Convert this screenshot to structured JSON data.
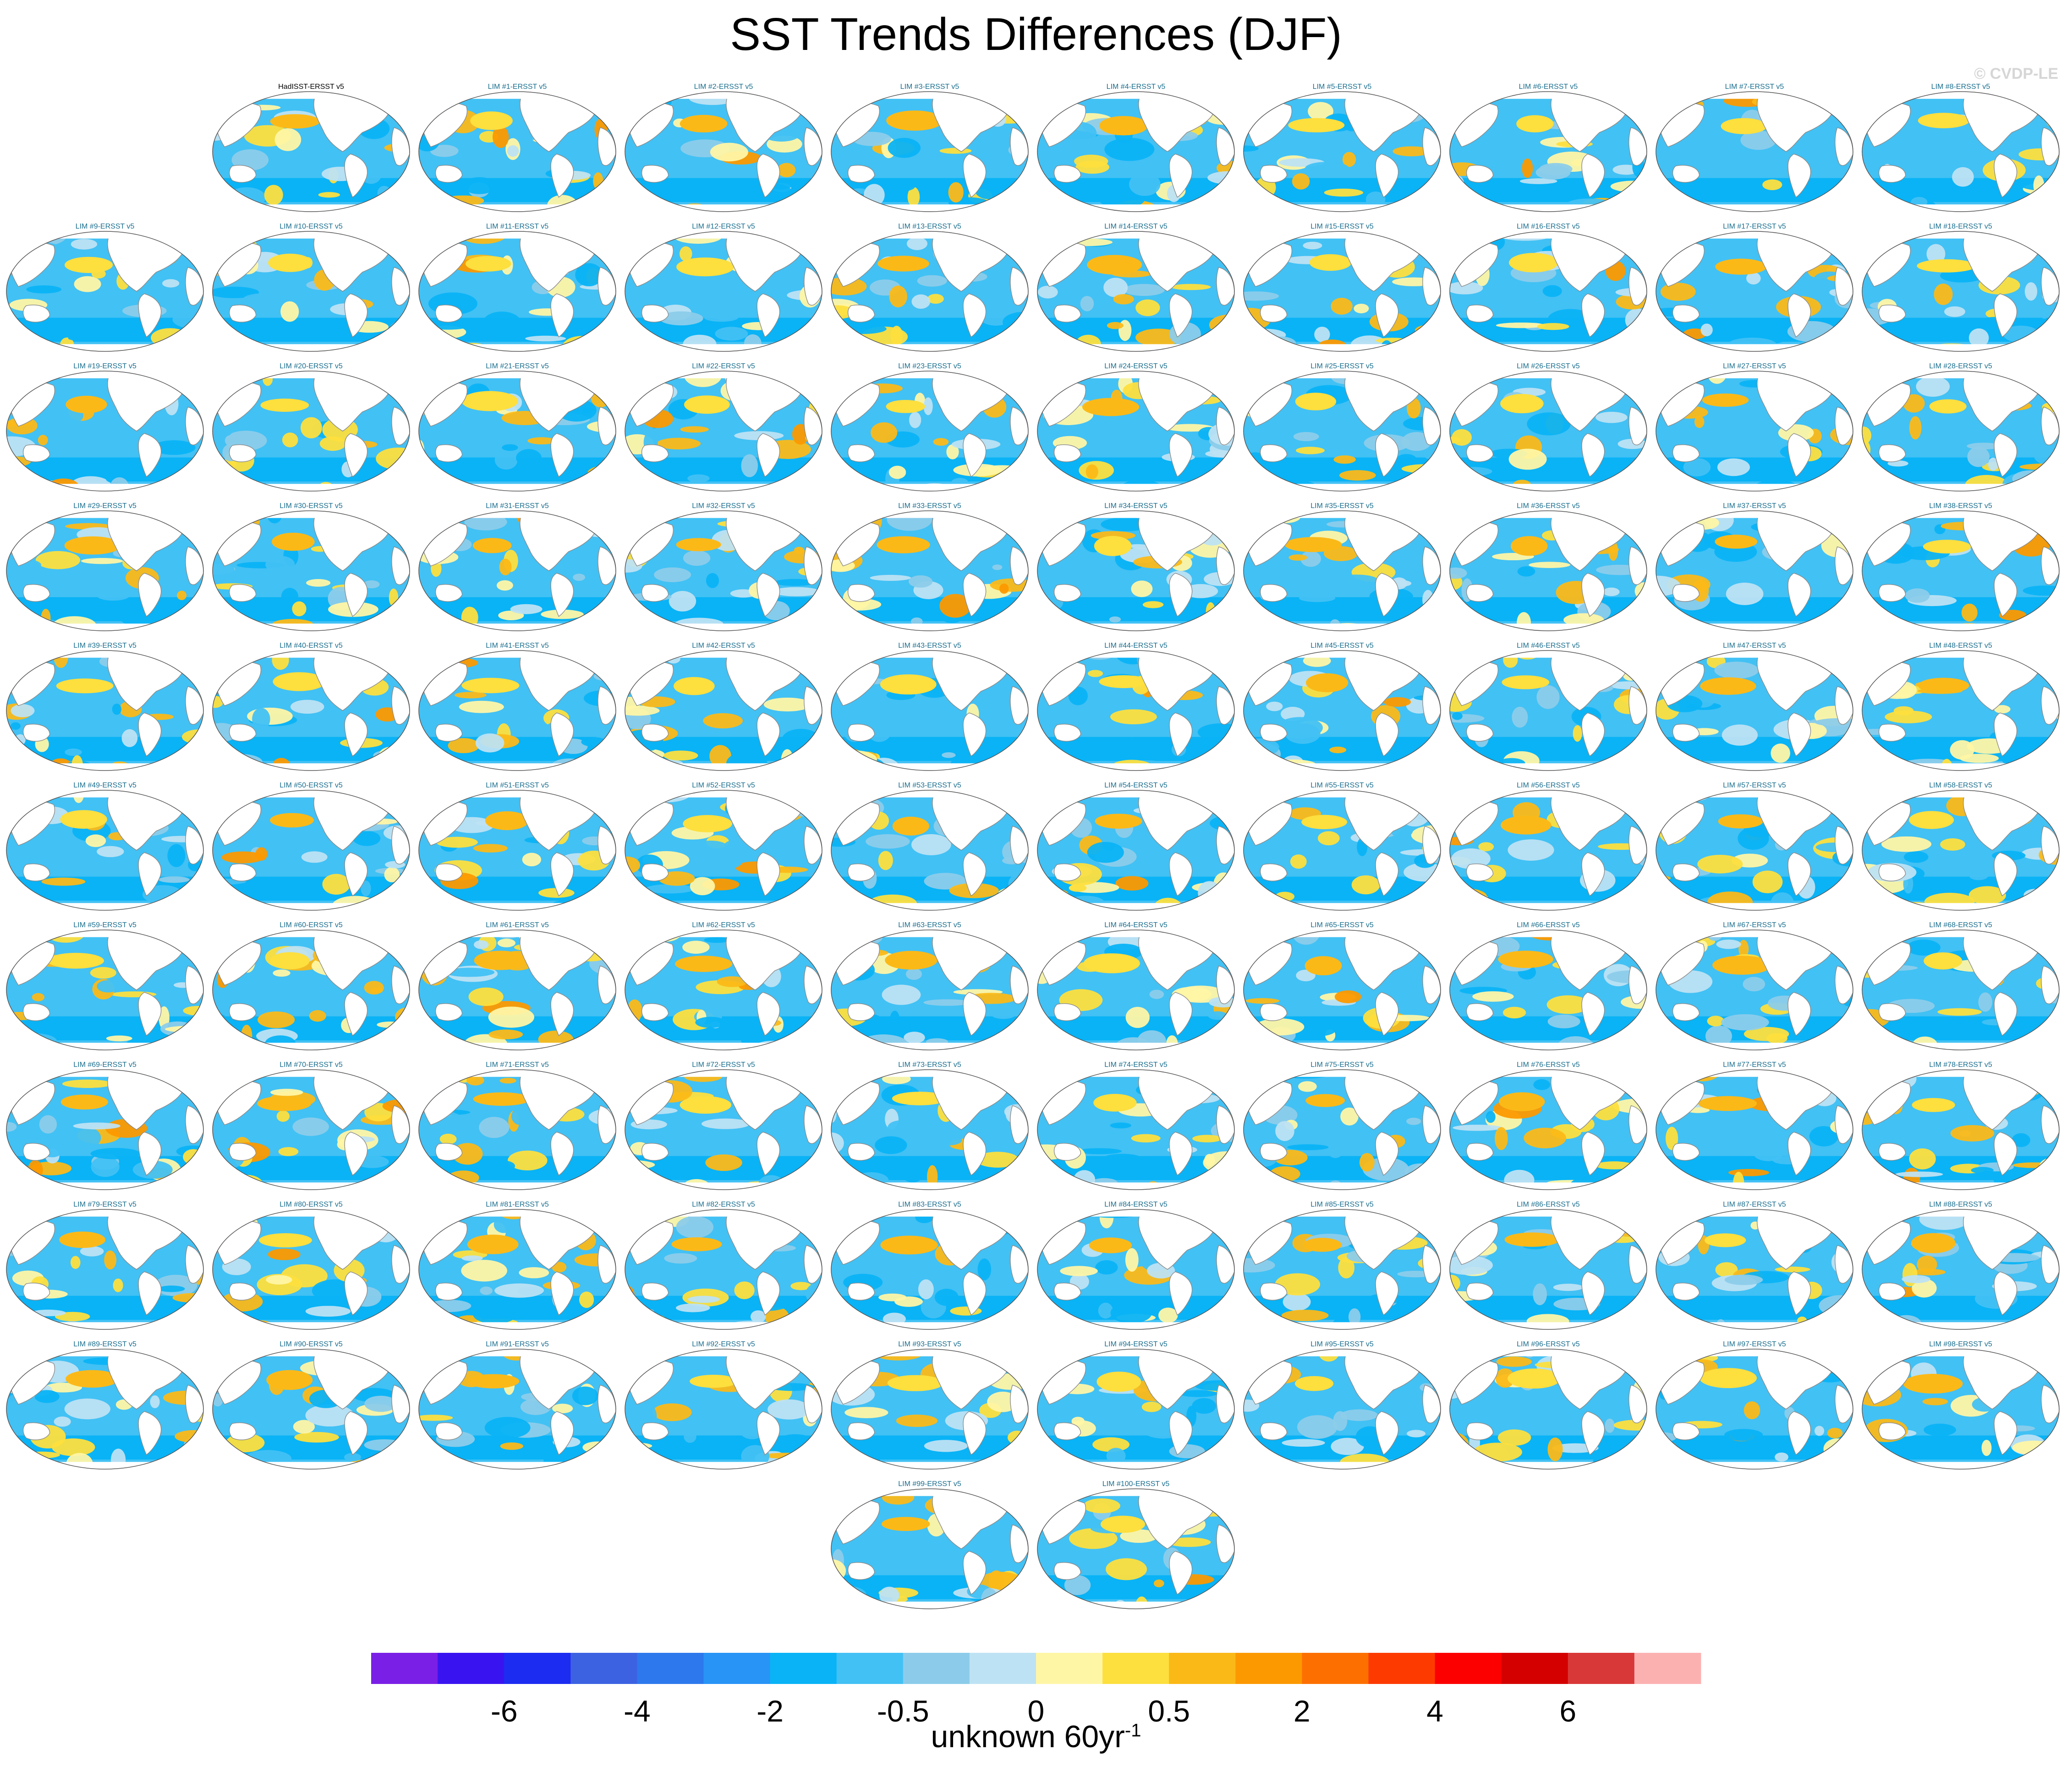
{
  "chart_data": {
    "type": "heatmap",
    "title": "SST Trends Differences (DJF)",
    "watermark": "© CVDP-LE",
    "units_label": "unknown 60yr",
    "units_exponent": "-1",
    "panels": [
      {
        "label": "HadISST-ERSST v5",
        "color": "#000000"
      },
      {
        "label": "LIM #1-ERSST v5",
        "color": "#1a6e8e"
      },
      {
        "label": "LIM #2-ERSST v5",
        "color": "#1a6e8e"
      },
      {
        "label": "LIM #3-ERSST v5",
        "color": "#1a6e8e"
      },
      {
        "label": "LIM #4-ERSST v5",
        "color": "#1a6e8e"
      },
      {
        "label": "LIM #5-ERSST v5",
        "color": "#1a6e8e"
      },
      {
        "label": "LIM #6-ERSST v5",
        "color": "#1a6e8e"
      },
      {
        "label": "LIM #7-ERSST v5",
        "color": "#1a6e8e"
      },
      {
        "label": "LIM #8-ERSST v5",
        "color": "#1a6e8e"
      },
      {
        "label": "LIM #9-ERSST v5",
        "color": "#1a6e8e"
      },
      {
        "label": "LIM #10-ERSST v5",
        "color": "#1a6e8e"
      },
      {
        "label": "LIM #11-ERSST v5",
        "color": "#1a6e8e"
      },
      {
        "label": "LIM #12-ERSST v5",
        "color": "#1a6e8e"
      },
      {
        "label": "LIM #13-ERSST v5",
        "color": "#1a6e8e"
      },
      {
        "label": "LIM #14-ERSST v5",
        "color": "#1a6e8e"
      },
      {
        "label": "LIM #15-ERSST v5",
        "color": "#1a6e8e"
      },
      {
        "label": "LIM #16-ERSST v5",
        "color": "#1a6e8e"
      },
      {
        "label": "LIM #17-ERSST v5",
        "color": "#1a6e8e"
      },
      {
        "label": "LIM #18-ERSST v5",
        "color": "#1a6e8e"
      },
      {
        "label": "LIM #19-ERSST v5",
        "color": "#1a6e8e"
      },
      {
        "label": "LIM #20-ERSST v5",
        "color": "#1a6e8e"
      },
      {
        "label": "LIM #21-ERSST v5",
        "color": "#1a6e8e"
      },
      {
        "label": "LIM #22-ERSST v5",
        "color": "#1a6e8e"
      },
      {
        "label": "LIM #23-ERSST v5",
        "color": "#1a6e8e"
      },
      {
        "label": "LIM #24-ERSST v5",
        "color": "#1a6e8e"
      },
      {
        "label": "LIM #25-ERSST v5",
        "color": "#1a6e8e"
      },
      {
        "label": "LIM #26-ERSST v5",
        "color": "#1a6e8e"
      },
      {
        "label": "LIM #27-ERSST v5",
        "color": "#1a6e8e"
      },
      {
        "label": "LIM #28-ERSST v5",
        "color": "#1a6e8e"
      },
      {
        "label": "LIM #29-ERSST v5",
        "color": "#1a6e8e"
      },
      {
        "label": "LIM #30-ERSST v5",
        "color": "#1a6e8e"
      },
      {
        "label": "LIM #31-ERSST v5",
        "color": "#1a6e8e"
      },
      {
        "label": "LIM #32-ERSST v5",
        "color": "#1a6e8e"
      },
      {
        "label": "LIM #33-ERSST v5",
        "color": "#1a6e8e"
      },
      {
        "label": "LIM #34-ERSST v5",
        "color": "#1a6e8e"
      },
      {
        "label": "LIM #35-ERSST v5",
        "color": "#1a6e8e"
      },
      {
        "label": "LIM #36-ERSST v5",
        "color": "#1a6e8e"
      },
      {
        "label": "LIM #37-ERSST v5",
        "color": "#1a6e8e"
      },
      {
        "label": "LIM #38-ERSST v5",
        "color": "#1a6e8e"
      },
      {
        "label": "LIM #39-ERSST v5",
        "color": "#1a6e8e"
      },
      {
        "label": "LIM #40-ERSST v5",
        "color": "#1a6e8e"
      },
      {
        "label": "LIM #41-ERSST v5",
        "color": "#1a6e8e"
      },
      {
        "label": "LIM #42-ERSST v5",
        "color": "#1a6e8e"
      },
      {
        "label": "LIM #43-ERSST v5",
        "color": "#1a6e8e"
      },
      {
        "label": "LIM #44-ERSST v5",
        "color": "#1a6e8e"
      },
      {
        "label": "LIM #45-ERSST v5",
        "color": "#1a6e8e"
      },
      {
        "label": "LIM #46-ERSST v5",
        "color": "#1a6e8e"
      },
      {
        "label": "LIM #47-ERSST v5",
        "color": "#1a6e8e"
      },
      {
        "label": "LIM #48-ERSST v5",
        "color": "#1a6e8e"
      },
      {
        "label": "LIM #49-ERSST v5",
        "color": "#1a6e8e"
      },
      {
        "label": "LIM #50-ERSST v5",
        "color": "#1a6e8e"
      },
      {
        "label": "LIM #51-ERSST v5",
        "color": "#1a6e8e"
      },
      {
        "label": "LIM #52-ERSST v5",
        "color": "#1a6e8e"
      },
      {
        "label": "LIM #53-ERSST v5",
        "color": "#1a6e8e"
      },
      {
        "label": "LIM #54-ERSST v5",
        "color": "#1a6e8e"
      },
      {
        "label": "LIM #55-ERSST v5",
        "color": "#1a6e8e"
      },
      {
        "label": "LIM #56-ERSST v5",
        "color": "#1a6e8e"
      },
      {
        "label": "LIM #57-ERSST v5",
        "color": "#1a6e8e"
      },
      {
        "label": "LIM #58-ERSST v5",
        "color": "#1a6e8e"
      },
      {
        "label": "LIM #59-ERSST v5",
        "color": "#1a6e8e"
      },
      {
        "label": "LIM #60-ERSST v5",
        "color": "#1a6e8e"
      },
      {
        "label": "LIM #61-ERSST v5",
        "color": "#1a6e8e"
      },
      {
        "label": "LIM #62-ERSST v5",
        "color": "#1a6e8e"
      },
      {
        "label": "LIM #63-ERSST v5",
        "color": "#1a6e8e"
      },
      {
        "label": "LIM #64-ERSST v5",
        "color": "#1a6e8e"
      },
      {
        "label": "LIM #65-ERSST v5",
        "color": "#1a6e8e"
      },
      {
        "label": "LIM #66-ERSST v5",
        "color": "#1a6e8e"
      },
      {
        "label": "LIM #67-ERSST v5",
        "color": "#1a6e8e"
      },
      {
        "label": "LIM #68-ERSST v5",
        "color": "#1a6e8e"
      },
      {
        "label": "LIM #69-ERSST v5",
        "color": "#1a6e8e"
      },
      {
        "label": "LIM #70-ERSST v5",
        "color": "#1a6e8e"
      },
      {
        "label": "LIM #71-ERSST v5",
        "color": "#1a6e8e"
      },
      {
        "label": "LIM #72-ERSST v5",
        "color": "#1a6e8e"
      },
      {
        "label": "LIM #73-ERSST v5",
        "color": "#1a6e8e"
      },
      {
        "label": "LIM #74-ERSST v5",
        "color": "#1a6e8e"
      },
      {
        "label": "LIM #75-ERSST v5",
        "color": "#1a6e8e"
      },
      {
        "label": "LIM #76-ERSST v5",
        "color": "#1a6e8e"
      },
      {
        "label": "LIM #77-ERSST v5",
        "color": "#1a6e8e"
      },
      {
        "label": "LIM #78-ERSST v5",
        "color": "#1a6e8e"
      },
      {
        "label": "LIM #79-ERSST v5",
        "color": "#1a6e8e"
      },
      {
        "label": "LIM #80-ERSST v5",
        "color": "#1a6e8e"
      },
      {
        "label": "LIM #81-ERSST v5",
        "color": "#1a6e8e"
      },
      {
        "label": "LIM #82-ERSST v5",
        "color": "#1a6e8e"
      },
      {
        "label": "LIM #83-ERSST v5",
        "color": "#1a6e8e"
      },
      {
        "label": "LIM #84-ERSST v5",
        "color": "#1a6e8e"
      },
      {
        "label": "LIM #85-ERSST v5",
        "color": "#1a6e8e"
      },
      {
        "label": "LIM #86-ERSST v5",
        "color": "#1a6e8e"
      },
      {
        "label": "LIM #87-ERSST v5",
        "color": "#1a6e8e"
      },
      {
        "label": "LIM #88-ERSST v5",
        "color": "#1a6e8e"
      },
      {
        "label": "LIM #89-ERSST v5",
        "color": "#1a6e8e"
      },
      {
        "label": "LIM #90-ERSST v5",
        "color": "#1a6e8e"
      },
      {
        "label": "LIM #91-ERSST v5",
        "color": "#1a6e8e"
      },
      {
        "label": "LIM #92-ERSST v5",
        "color": "#1a6e8e"
      },
      {
        "label": "LIM #93-ERSST v5",
        "color": "#1a6e8e"
      },
      {
        "label": "LIM #94-ERSST v5",
        "color": "#1a6e8e"
      },
      {
        "label": "LIM #95-ERSST v5",
        "color": "#1a6e8e"
      },
      {
        "label": "LIM #96-ERSST v5",
        "color": "#1a6e8e"
      },
      {
        "label": "LIM #97-ERSST v5",
        "color": "#1a6e8e"
      },
      {
        "label": "LIM #98-ERSST v5",
        "color": "#1a6e8e"
      },
      {
        "label": "LIM #99-ERSST v5",
        "color": "#1a6e8e"
      },
      {
        "label": "LIM #100-ERSST v5",
        "color": "#1a6e8e"
      }
    ],
    "colorbar": {
      "colors": [
        "#7a1fe6",
        "#3a14f0",
        "#1c2cf0",
        "#3c62e2",
        "#2d78ec",
        "#2894f6",
        "#09b3f6",
        "#42c1f4",
        "#8cccea",
        "#bde2f3",
        "#fff6a5",
        "#fddf3e",
        "#fbb918",
        "#fc9900",
        "#fd7000",
        "#fd3b00",
        "#fc0000",
        "#d40000",
        "#d93838",
        "#fcb1b1"
      ],
      "tick_labels": [
        "-6",
        "-4",
        "-2",
        "-0.5",
        "0",
        "0.5",
        "2",
        "4",
        "6"
      ],
      "tick_boundary_index": [
        2,
        4,
        6,
        8,
        10,
        12,
        14,
        16,
        18
      ]
    }
  }
}
